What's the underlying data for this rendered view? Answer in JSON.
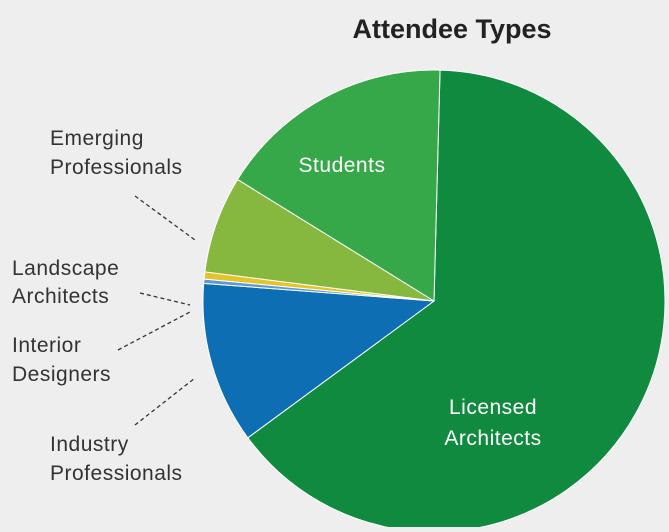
{
  "chart_data": {
    "type": "pie",
    "title": "Attendee Types",
    "slices": [
      {
        "label": "Licensed Architects",
        "value": 64.5,
        "color": "#0f8a3e",
        "label_style": "inside"
      },
      {
        "label": "Industry Professionals",
        "value": 11.3,
        "color": "#0d6eb3",
        "label_style": "outside"
      },
      {
        "label": "Interior Designers",
        "value": 0.3,
        "color": "#5b9bd5",
        "label_style": "outside"
      },
      {
        "label": "Landscape Architects",
        "value": 0.5,
        "color": "#e3c52b",
        "label_style": "outside"
      },
      {
        "label": "Emerging Professionals",
        "value": 6.8,
        "color": "#86b83f",
        "label_style": "outside"
      },
      {
        "label": "Students",
        "value": 16.6,
        "color": "#37a84a",
        "label_style": "inside"
      }
    ],
    "start_angle_deg": 88.5,
    "direction": "clockwise"
  }
}
